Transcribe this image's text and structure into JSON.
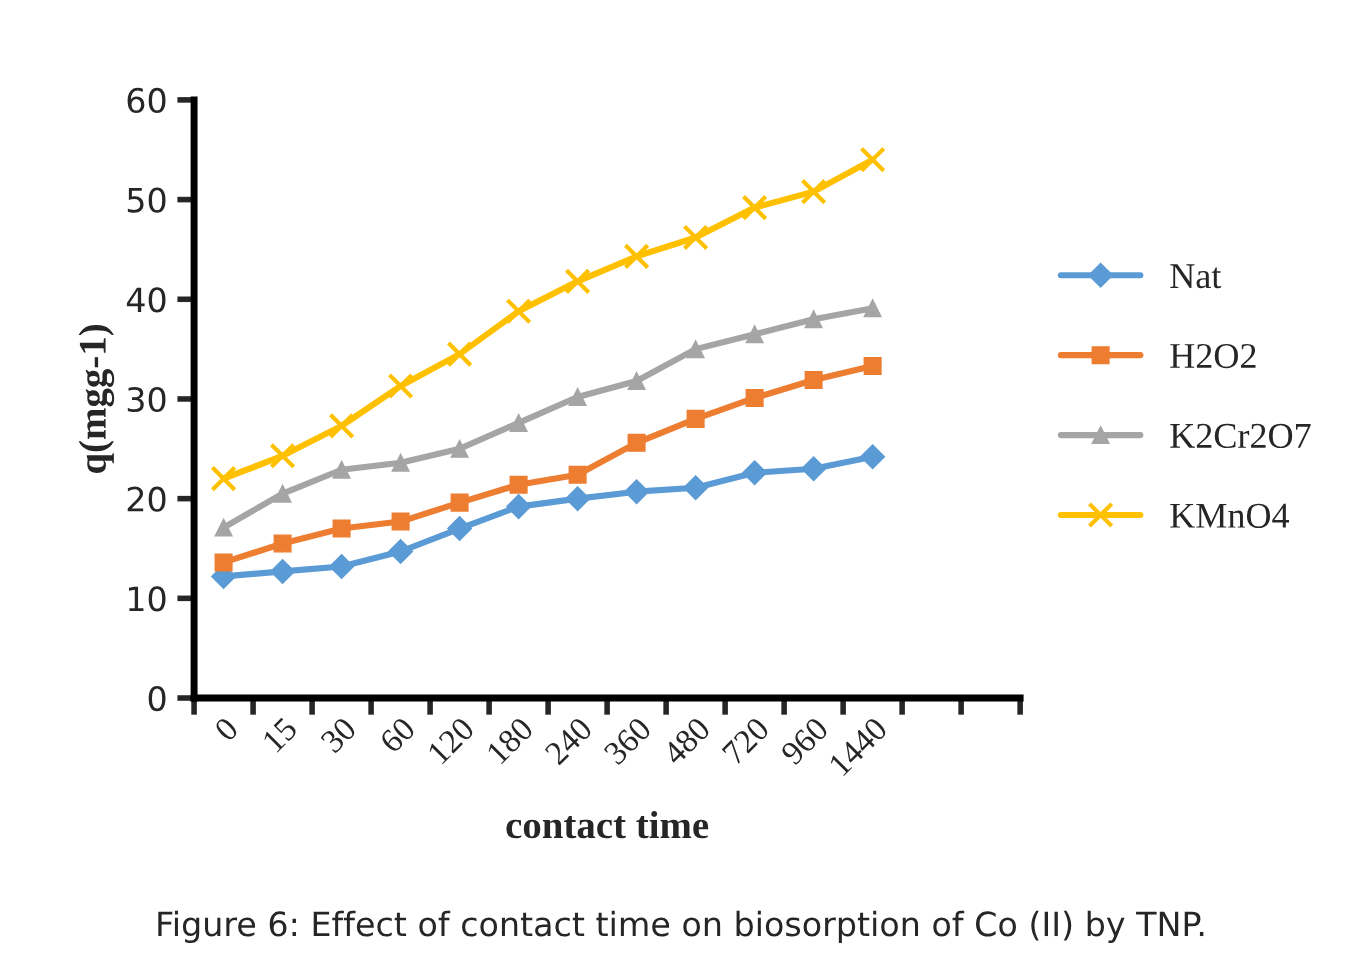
{
  "chart_data": {
    "type": "line",
    "xlabel": "contact time",
    "ylabel": "q(mgg-1)",
    "categories": [
      "0",
      "15",
      "30",
      "60",
      "120",
      "180",
      "240",
      "360",
      "480",
      "720",
      "960",
      "1440",
      null,
      null
    ],
    "series": [
      {
        "name": "Nat",
        "color": "#5b9bd5",
        "marker": "diamond",
        "values": [
          12.2,
          12.7,
          13.2,
          14.7,
          17,
          19.2,
          20,
          20.7,
          21.1,
          22.6,
          23,
          24.2,
          null,
          null
        ]
      },
      {
        "name": "H2O2",
        "color": "#ed7d31",
        "marker": "square",
        "values": [
          13.6,
          15.5,
          17,
          17.7,
          19.6,
          21.4,
          22.4,
          25.6,
          28,
          30.1,
          31.9,
          33.3,
          null,
          null
        ]
      },
      {
        "name": "K2Cr2O7",
        "color": "#a5a5a5",
        "marker": "triangle",
        "values": [
          17.1,
          20.5,
          22.9,
          23.6,
          25,
          27.6,
          30.2,
          31.8,
          35,
          36.5,
          38,
          39.1,
          null,
          null
        ]
      },
      {
        "name": "KMnO4",
        "color": "#ffc000",
        "marker": "cross",
        "values": [
          22,
          24.3,
          27.3,
          31.3,
          34.5,
          38.8,
          41.8,
          44.3,
          46.2,
          49.2,
          50.8,
          54,
          null,
          null
        ]
      }
    ],
    "ylim": [
      0,
      60
    ],
    "yticks": [
      0,
      10,
      20,
      30,
      40,
      50,
      60
    ],
    "grid": false,
    "legend": "right",
    "line_style": "solid",
    "annotations": [
      "Figure 6: Effect of contact time on biosorption of Co (II) by TNP."
    ]
  }
}
